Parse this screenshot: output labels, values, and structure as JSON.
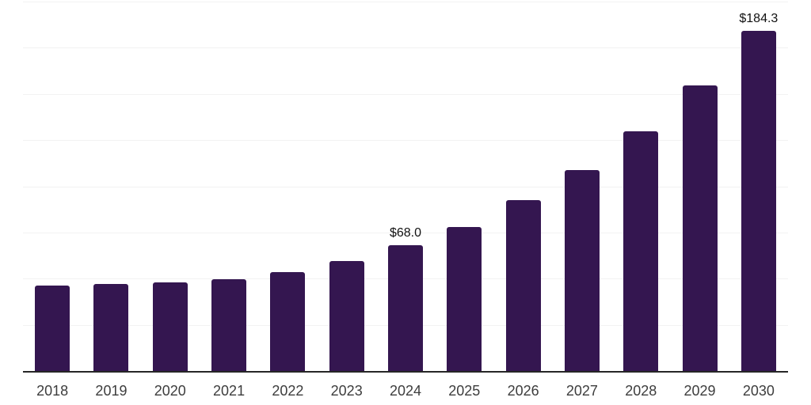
{
  "chart_data": {
    "type": "bar",
    "title": "",
    "xlabel": "",
    "ylabel": "",
    "categories": [
      "2018",
      "2019",
      "2020",
      "2021",
      "2022",
      "2023",
      "2024",
      "2025",
      "2026",
      "2027",
      "2028",
      "2029",
      "2030"
    ],
    "values": [
      46.4,
      47.0,
      47.8,
      49.5,
      53.5,
      59.5,
      68.0,
      77.9,
      92.5,
      108.8,
      129.8,
      154.5,
      184.3
    ],
    "annotations": [
      {
        "category": "2024",
        "index": 6,
        "text": "$68.0"
      },
      {
        "category": "2030",
        "index": 12,
        "text": "$184.3"
      }
    ],
    "ylim": [
      0,
      200
    ],
    "gridline_step": 25,
    "grid": "horizontal-only",
    "legend": "none",
    "y_tick_labels_visible": false,
    "colors": {
      "bar": "#341650",
      "axis_line": "#262626",
      "gridline": "#f2f2f2",
      "value_label": "#111111",
      "tick_label": "#3d3d3d",
      "background": "#ffffff"
    }
  }
}
